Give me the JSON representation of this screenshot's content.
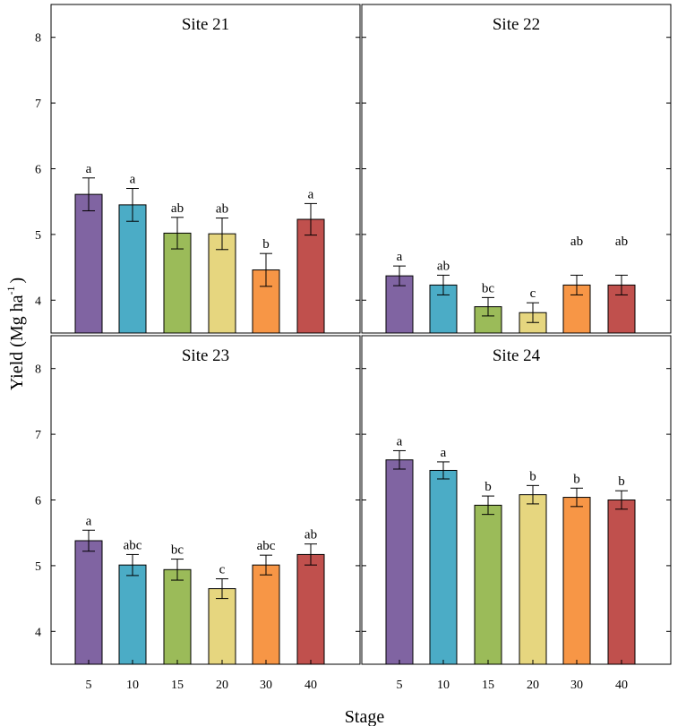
{
  "chart_data": {
    "type": "bar",
    "xlabel": "Stage",
    "ylabel_text": "Yield (Mg ha",
    "ylabel_superscript": "-1",
    "ylabel_close": ")",
    "categories": [
      "5",
      "10",
      "15",
      "20",
      "30",
      "40"
    ],
    "colors": [
      "#8064a2",
      "#4bacc6",
      "#9bbb59",
      "#e6d67f",
      "#f79646",
      "#c0504d"
    ],
    "panels": [
      {
        "title": "Site 21",
        "ylim": [
          3.5,
          8.5
        ],
        "yticks": [
          "4",
          "5",
          "6",
          "7",
          "8"
        ],
        "values": [
          5.61,
          5.45,
          5.02,
          5.01,
          4.46,
          5.23
        ],
        "errors": [
          0.25,
          0.25,
          0.24,
          0.24,
          0.25,
          0.24
        ],
        "letters": [
          "a",
          "a",
          "ab",
          "ab",
          "b",
          "a"
        ]
      },
      {
        "title": "Site 22",
        "ylim": [
          3.5,
          8.5
        ],
        "yticks": [
          "4",
          "5",
          "6",
          "7",
          "8"
        ],
        "values": [
          4.37,
          4.23,
          3.9,
          3.81,
          4.23,
          4.23
        ],
        "errors": [
          0.15,
          0.15,
          0.14,
          0.15,
          0.15,
          0.15
        ],
        "letters": [
          "a",
          "ab",
          "bc",
          "c",
          "ab",
          "ab"
        ]
      },
      {
        "title": "Site 23",
        "ylim": [
          3.5,
          8.5
        ],
        "yticks": [
          "4",
          "5",
          "6",
          "7",
          "8"
        ],
        "values": [
          5.38,
          5.01,
          4.94,
          4.65,
          5.01,
          5.17
        ],
        "errors": [
          0.16,
          0.16,
          0.16,
          0.15,
          0.15,
          0.16
        ],
        "letters": [
          "a",
          "abc",
          "bc",
          "c",
          "abc",
          "ab"
        ]
      },
      {
        "title": "Site 24",
        "ylim": [
          3.5,
          8.5
        ],
        "yticks": [
          "4",
          "5",
          "6",
          "7",
          "8"
        ],
        "values": [
          6.61,
          6.45,
          5.92,
          6.08,
          6.04,
          6.0
        ],
        "errors": [
          0.14,
          0.13,
          0.14,
          0.14,
          0.14,
          0.14
        ],
        "letters": [
          "a",
          "a",
          "b",
          "b",
          "b",
          "b"
        ]
      }
    ]
  }
}
